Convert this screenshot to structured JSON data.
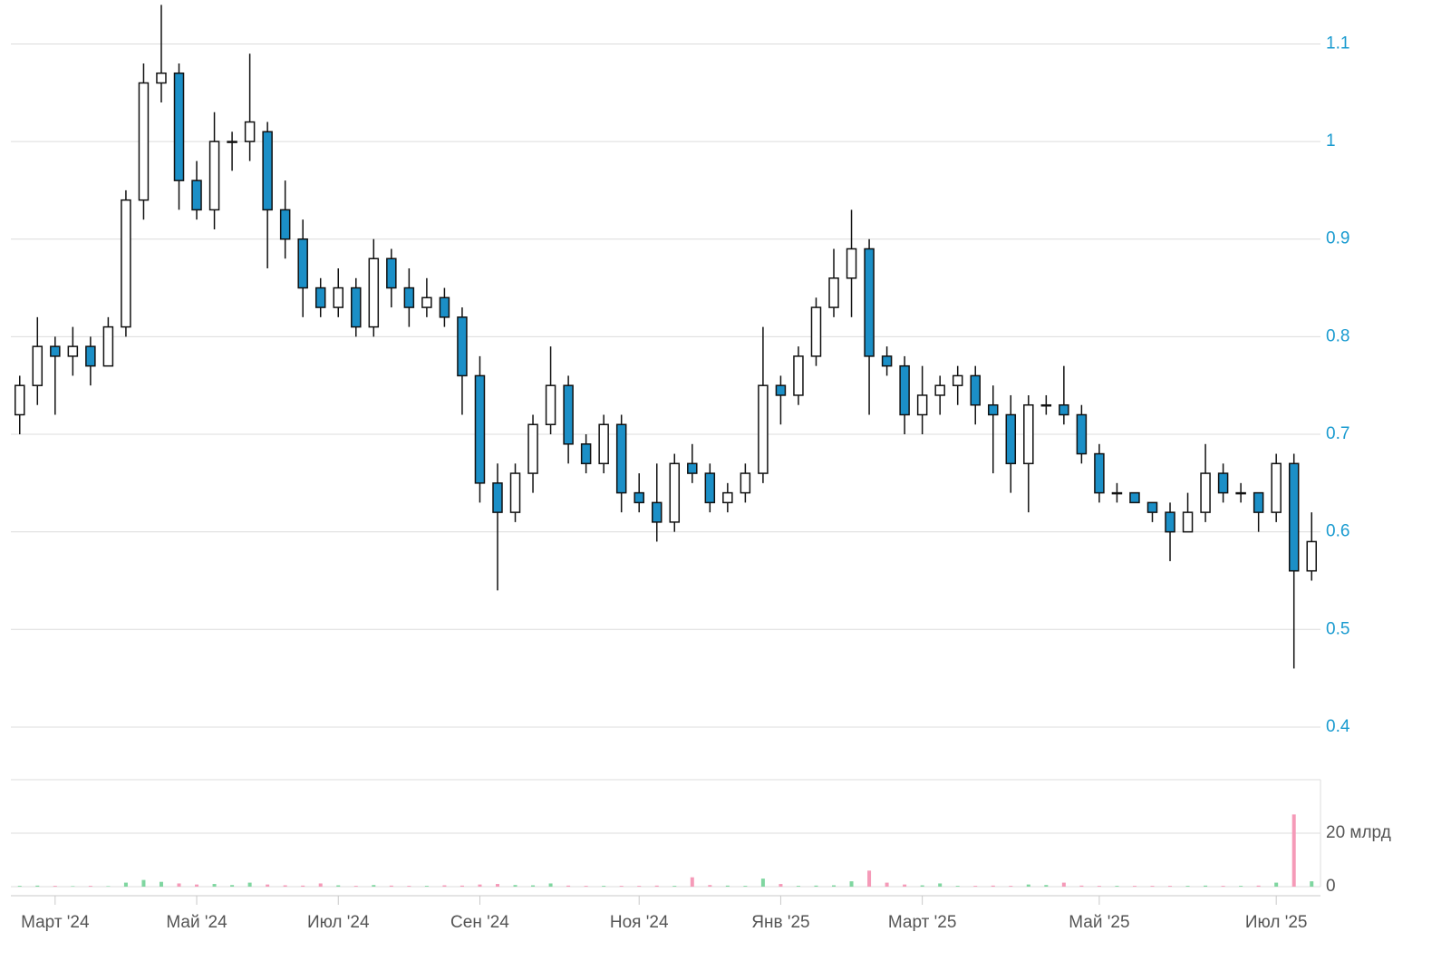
{
  "chart_data": {
    "type": "candlestick",
    "categories": [
      null,
      null,
      "Март '24",
      null,
      null,
      null,
      null,
      null,
      null,
      null,
      "Май '24",
      null,
      null,
      null,
      null,
      null,
      null,
      null,
      "Июл '24",
      null,
      null,
      null,
      null,
      null,
      null,
      null,
      "Сен '24",
      null,
      null,
      null,
      null,
      null,
      null,
      null,
      null,
      "Ноя '24",
      null,
      null,
      null,
      null,
      null,
      null,
      null,
      "Янв '25",
      null,
      null,
      null,
      null,
      null,
      null,
      null,
      "Март '25",
      null,
      null,
      null,
      null,
      null,
      null,
      null,
      null,
      null,
      "Май '25",
      null,
      null,
      null,
      null,
      null,
      null,
      null,
      null,
      null,
      "Июл '25",
      null,
      null
    ],
    "open": [
      0.72,
      0.75,
      0.79,
      0.78,
      0.79,
      0.77,
      0.81,
      0.94,
      1.06,
      1.07,
      0.96,
      0.93,
      1.0,
      1.0,
      1.01,
      0.93,
      0.9,
      0.85,
      0.83,
      0.85,
      0.81,
      0.88,
      0.85,
      0.83,
      0.84,
      0.82,
      0.76,
      0.65,
      0.62,
      0.66,
      0.71,
      0.75,
      0.69,
      0.67,
      0.71,
      0.64,
      0.63,
      0.61,
      0.67,
      0.66,
      0.63,
      0.64,
      0.66,
      0.75,
      0.74,
      0.78,
      0.83,
      0.86,
      0.89,
      0.78,
      0.77,
      0.72,
      0.74,
      0.75,
      0.76,
      0.73,
      0.72,
      0.67,
      0.73,
      0.73,
      0.72,
      0.68,
      0.64,
      0.64,
      0.63,
      0.62,
      0.6,
      0.62,
      0.66,
      0.64,
      0.64,
      0.62,
      0.67,
      0.56
    ],
    "high": [
      0.76,
      0.82,
      0.8,
      0.81,
      0.8,
      0.82,
      0.95,
      1.08,
      1.14,
      1.08,
      0.98,
      1.03,
      1.01,
      1.09,
      1.02,
      0.96,
      0.92,
      0.86,
      0.87,
      0.86,
      0.9,
      0.89,
      0.87,
      0.86,
      0.85,
      0.83,
      0.78,
      0.67,
      0.67,
      0.72,
      0.79,
      0.76,
      0.7,
      0.72,
      0.72,
      0.66,
      0.67,
      0.68,
      0.69,
      0.67,
      0.65,
      0.67,
      0.81,
      0.76,
      0.79,
      0.84,
      0.89,
      0.93,
      0.9,
      0.79,
      0.78,
      0.77,
      0.76,
      0.77,
      0.77,
      0.75,
      0.74,
      0.74,
      0.74,
      0.77,
      0.73,
      0.69,
      0.65,
      0.64,
      0.63,
      0.63,
      0.64,
      0.69,
      0.67,
      0.65,
      0.64,
      0.68,
      0.68,
      0.62
    ],
    "low": [
      0.7,
      0.73,
      0.72,
      0.76,
      0.75,
      0.77,
      0.8,
      0.92,
      1.04,
      0.93,
      0.92,
      0.91,
      0.97,
      0.98,
      0.87,
      0.88,
      0.82,
      0.82,
      0.82,
      0.8,
      0.8,
      0.83,
      0.81,
      0.82,
      0.81,
      0.72,
      0.63,
      0.54,
      0.61,
      0.64,
      0.7,
      0.67,
      0.66,
      0.66,
      0.62,
      0.62,
      0.59,
      0.6,
      0.65,
      0.62,
      0.62,
      0.63,
      0.65,
      0.71,
      0.73,
      0.77,
      0.82,
      0.82,
      0.72,
      0.76,
      0.7,
      0.7,
      0.72,
      0.73,
      0.71,
      0.66,
      0.64,
      0.62,
      0.72,
      0.71,
      0.67,
      0.63,
      0.63,
      0.63,
      0.61,
      0.57,
      0.6,
      0.61,
      0.63,
      0.63,
      0.6,
      0.61,
      0.46,
      0.55
    ],
    "close": [
      0.75,
      0.79,
      0.78,
      0.79,
      0.77,
      0.81,
      0.94,
      1.06,
      1.07,
      0.96,
      0.93,
      1.0,
      1.0,
      1.02,
      0.93,
      0.9,
      0.85,
      0.83,
      0.85,
      0.81,
      0.88,
      0.85,
      0.83,
      0.84,
      0.82,
      0.76,
      0.65,
      0.62,
      0.66,
      0.71,
      0.75,
      0.69,
      0.67,
      0.71,
      0.64,
      0.63,
      0.61,
      0.67,
      0.66,
      0.63,
      0.64,
      0.66,
      0.75,
      0.74,
      0.78,
      0.83,
      0.86,
      0.89,
      0.78,
      0.77,
      0.72,
      0.74,
      0.75,
      0.76,
      0.73,
      0.72,
      0.67,
      0.73,
      0.73,
      0.72,
      0.68,
      0.64,
      0.64,
      0.63,
      0.62,
      0.6,
      0.62,
      0.66,
      0.64,
      0.64,
      0.62,
      0.67,
      0.56,
      0.59
    ],
    "volume": [
      0.3,
      0.4,
      0.3,
      0.2,
      0.3,
      0.2,
      1.5,
      2.5,
      1.8,
      1.2,
      0.8,
      1.0,
      0.6,
      1.5,
      0.8,
      0.5,
      0.4,
      1.2,
      0.5,
      0.3,
      0.6,
      0.4,
      0.3,
      0.3,
      0.5,
      0.4,
      0.8,
      1.0,
      0.6,
      0.5,
      1.2,
      0.4,
      0.3,
      0.3,
      0.3,
      0.3,
      0.4,
      0.3,
      3.5,
      0.6,
      0.4,
      0.3,
      3.0,
      1.0,
      0.3,
      0.4,
      0.5,
      2.0,
      6.0,
      1.5,
      0.8,
      0.5,
      1.2,
      0.3,
      0.3,
      0.4,
      0.3,
      0.8,
      0.6,
      1.5,
      0.4,
      0.3,
      0.3,
      0.3,
      0.3,
      0.3,
      0.3,
      0.4,
      0.3,
      0.3,
      0.4,
      1.5,
      27,
      2.0
    ],
    "ylim": [
      0.36,
      1.145
    ],
    "yticks": [
      0.4,
      0.5,
      0.6,
      0.7,
      0.8,
      0.9,
      1,
      1.1
    ],
    "volume_ylim": [
      0,
      40
    ],
    "volume_yticks": [
      0,
      {
        "value": 20,
        "label": "20 млрд"
      }
    ],
    "up_color": "#ffffff",
    "down_color": "#1b8fc7",
    "volume_up_color": "#7fd6a0",
    "volume_down_color": "#f59ab8",
    "grid": true
  }
}
